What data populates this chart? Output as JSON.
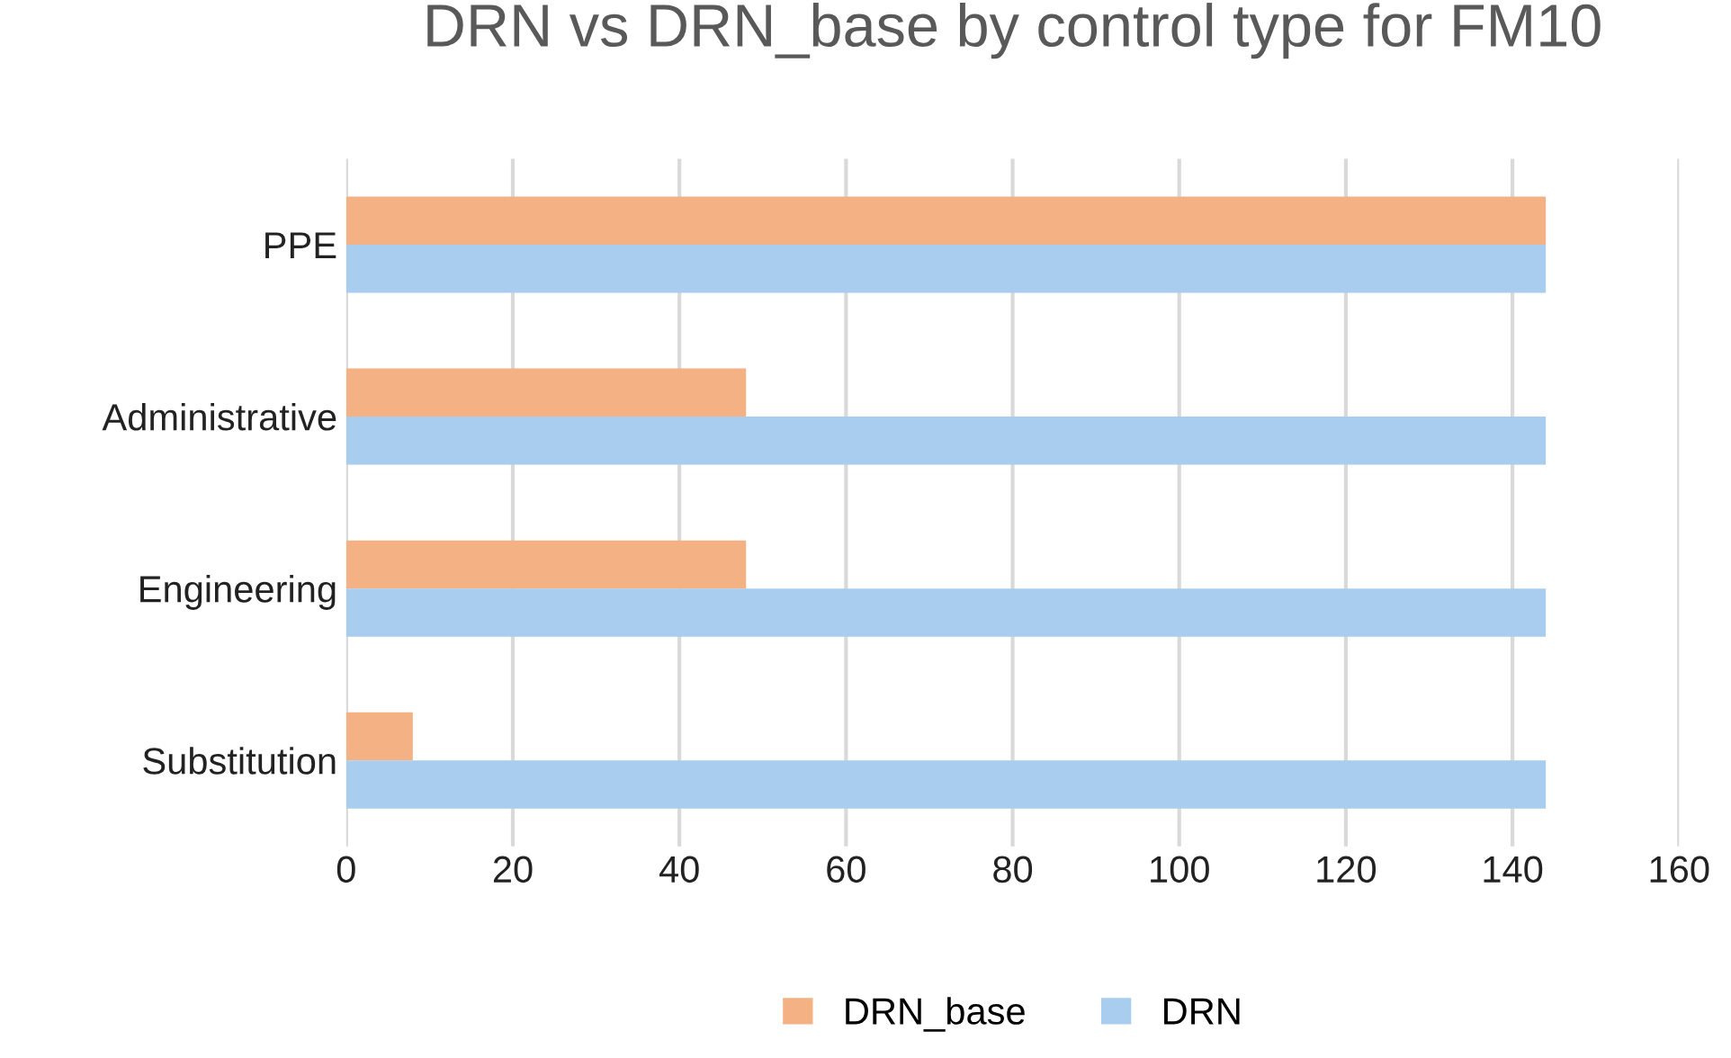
{
  "chart_data": {
    "type": "bar",
    "orientation": "horizontal",
    "title": "DRN vs DRN_base by control type for FM10",
    "categories": [
      "PPE",
      "Administrative",
      "Engineering",
      "Substitution"
    ],
    "series": [
      {
        "name": "DRN_base",
        "color": "#f4b183",
        "values": [
          144,
          48,
          48,
          8
        ]
      },
      {
        "name": "DRN",
        "color": "#a9cdee",
        "values": [
          144,
          144,
          144,
          144
        ]
      }
    ],
    "xlim": [
      0,
      160
    ],
    "xticks": [
      0,
      20,
      40,
      60,
      80,
      100,
      120,
      140,
      160
    ],
    "grid": "x",
    "legend": "bottom"
  }
}
